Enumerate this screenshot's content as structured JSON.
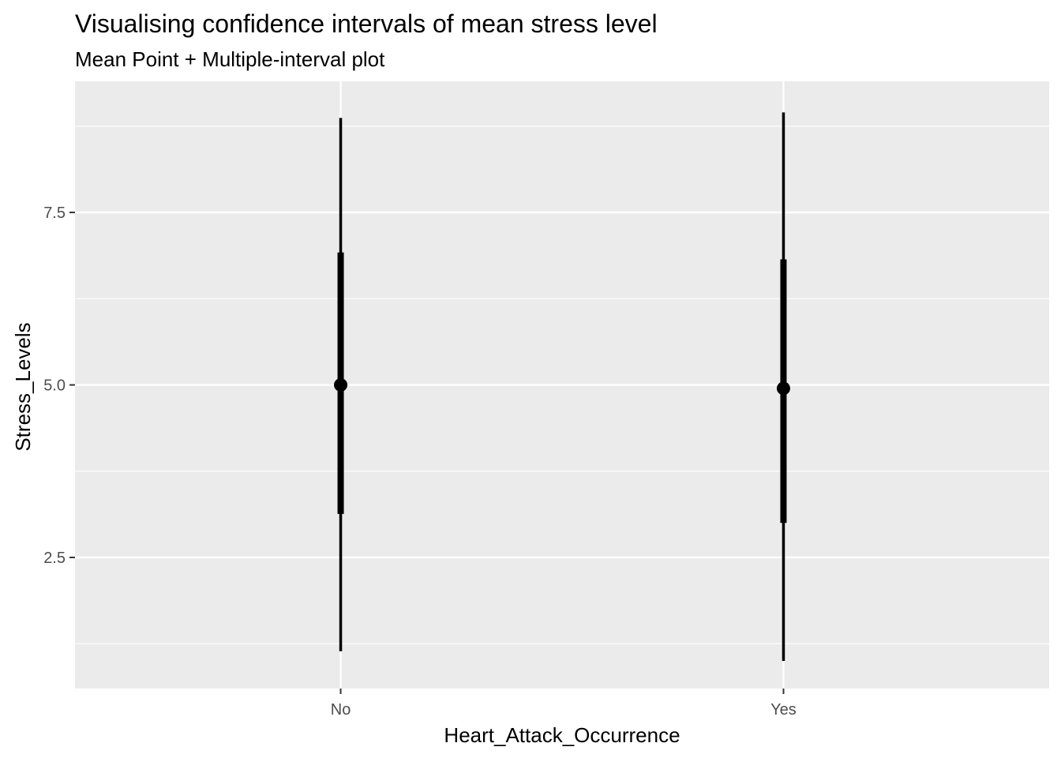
{
  "chart_data": {
    "type": "interval",
    "title": "Visualising confidence intervals of mean stress level",
    "subtitle": "Mean Point + Multiple-interval plot",
    "xlabel": "Heart_Attack_Occurrence",
    "ylabel": "Stress_Levels",
    "categories": [
      "No",
      "Yes"
    ],
    "ylim": [
      0.6,
      9.4
    ],
    "yticks": [
      2.5,
      5.0,
      7.5
    ],
    "ytick_labels": [
      "2.5",
      "5.0",
      "7.5"
    ],
    "y_minor_ticks": [
      1.25,
      3.75,
      6.25,
      8.75
    ],
    "grid": true,
    "background": "#ebebeb",
    "grid_color": "#ffffff",
    "mark_color": "#000000",
    "groups": [
      {
        "category": "No",
        "mean": 5.0,
        "inner_interval": [
          3.13,
          6.92
        ],
        "outer_interval": [
          1.14,
          8.87
        ]
      },
      {
        "category": "Yes",
        "mean": 4.95,
        "inner_interval": [
          3.0,
          6.82
        ],
        "outer_interval": [
          1.0,
          8.95
        ]
      }
    ]
  }
}
